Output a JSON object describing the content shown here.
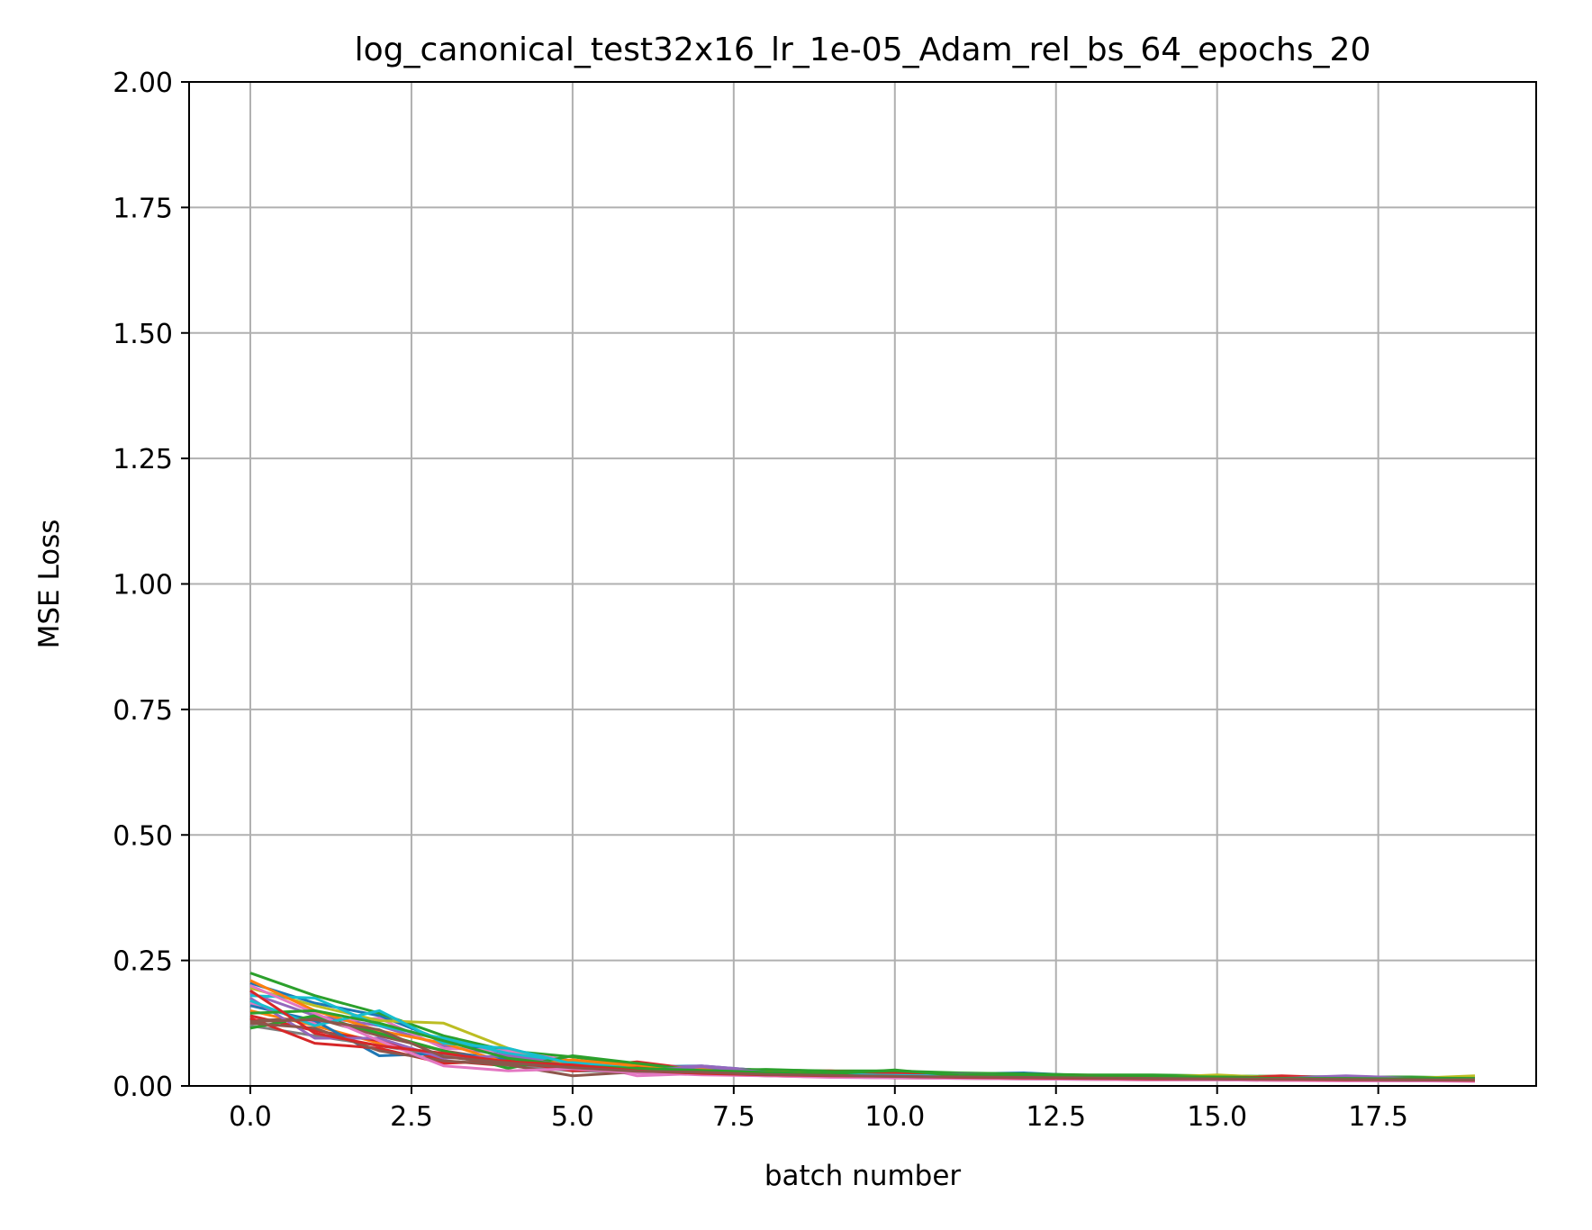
{
  "chart_data": {
    "type": "line",
    "title": "log_canonical_test32x16_lr_1e-05_Adam_rel_bs_64_epochs_20",
    "xlabel": "batch number",
    "ylabel": "MSE Loss",
    "xlim": [
      -0.95,
      19.95
    ],
    "ylim": [
      0,
      2
    ],
    "xticks": [
      0,
      2.5,
      5,
      7.5,
      10,
      12.5,
      15,
      17.5
    ],
    "xtick_labels": [
      "0.0",
      "2.5",
      "5.0",
      "7.5",
      "10.0",
      "12.5",
      "15.0",
      "17.5"
    ],
    "yticks": [
      0,
      0.25,
      0.5,
      0.75,
      1,
      1.25,
      1.5,
      1.75,
      2
    ],
    "ytick_labels": [
      "0.00",
      "0.25",
      "0.50",
      "0.75",
      "1.00",
      "1.25",
      "1.50",
      "1.75",
      "2.00"
    ],
    "grid": true,
    "x": [
      0,
      1,
      2,
      3,
      4,
      5,
      6,
      7,
      8,
      9,
      10,
      11,
      12,
      13,
      14,
      15,
      16,
      17,
      18,
      19
    ],
    "series": [
      {
        "color": "#1f77b4",
        "values": [
          0.205,
          0.165,
          0.14,
          0.09,
          0.065,
          0.05,
          0.038,
          0.04,
          0.03,
          0.028,
          0.025,
          0.024,
          0.026,
          0.02,
          0.02,
          0.018,
          0.017,
          0.018,
          0.016,
          0.014
        ]
      },
      {
        "color": "#ff7f0e",
        "values": [
          0.15,
          0.12,
          0.085,
          0.06,
          0.045,
          0.04,
          0.03,
          0.028,
          0.024,
          0.022,
          0.02,
          0.018,
          0.017,
          0.016,
          0.015,
          0.014,
          0.014,
          0.013,
          0.012,
          0.012
        ]
      },
      {
        "color": "#2ca02c",
        "values": [
          0.225,
          0.18,
          0.145,
          0.1,
          0.07,
          0.058,
          0.042,
          0.036,
          0.032,
          0.03,
          0.03,
          0.026,
          0.024,
          0.022,
          0.022,
          0.02,
          0.019,
          0.018,
          0.018,
          0.016
        ]
      },
      {
        "color": "#d62728",
        "values": [
          0.14,
          0.11,
          0.09,
          0.05,
          0.04,
          0.036,
          0.048,
          0.032,
          0.028,
          0.03,
          0.024,
          0.022,
          0.02,
          0.02,
          0.018,
          0.016,
          0.02,
          0.016,
          0.015,
          0.014
        ]
      },
      {
        "color": "#9467bd",
        "values": [
          0.185,
          0.14,
          0.12,
          0.08,
          0.06,
          0.045,
          0.034,
          0.04,
          0.03,
          0.026,
          0.022,
          0.024,
          0.02,
          0.018,
          0.018,
          0.017,
          0.016,
          0.02,
          0.016,
          0.015
        ]
      },
      {
        "color": "#8c564b",
        "values": [
          0.13,
          0.135,
          0.1,
          0.07,
          0.05,
          0.035,
          0.03,
          0.026,
          0.022,
          0.02,
          0.018,
          0.017,
          0.016,
          0.015,
          0.014,
          0.013,
          0.012,
          0.012,
          0.011,
          0.011
        ]
      },
      {
        "color": "#e377c2",
        "values": [
          0.165,
          0.125,
          0.135,
          0.075,
          0.07,
          0.05,
          0.02,
          0.025,
          0.022,
          0.019,
          0.017,
          0.016,
          0.015,
          0.014,
          0.014,
          0.013,
          0.012,
          0.012,
          0.011,
          0.01
        ]
      },
      {
        "color": "#7f7f7f",
        "values": [
          0.12,
          0.1,
          0.08,
          0.06,
          0.04,
          0.03,
          0.028,
          0.024,
          0.021,
          0.019,
          0.018,
          0.016,
          0.015,
          0.014,
          0.013,
          0.013,
          0.012,
          0.011,
          0.011,
          0.01
        ]
      },
      {
        "color": "#bcbd22",
        "values": [
          0.195,
          0.16,
          0.13,
          0.125,
          0.075,
          0.042,
          0.036,
          0.03,
          0.026,
          0.024,
          0.022,
          0.02,
          0.019,
          0.018,
          0.017,
          0.022,
          0.016,
          0.015,
          0.015,
          0.02
        ]
      },
      {
        "color": "#17becf",
        "values": [
          0.18,
          0.175,
          0.12,
          0.095,
          0.065,
          0.048,
          0.034,
          0.03,
          0.027,
          0.024,
          0.022,
          0.02,
          0.019,
          0.018,
          0.017,
          0.016,
          0.015,
          0.015,
          0.014,
          0.013
        ]
      },
      {
        "color": "#1f77b4",
        "values": [
          0.16,
          0.13,
          0.06,
          0.065,
          0.055,
          0.04,
          0.032,
          0.028,
          0.025,
          0.022,
          0.02,
          0.019,
          0.018,
          0.017,
          0.016,
          0.015,
          0.015,
          0.014,
          0.013,
          0.013
        ]
      },
      {
        "color": "#ff7f0e",
        "values": [
          0.21,
          0.15,
          0.11,
          0.085,
          0.045,
          0.052,
          0.04,
          0.034,
          0.028,
          0.025,
          0.023,
          0.021,
          0.02,
          0.018,
          0.017,
          0.016,
          0.016,
          0.015,
          0.014,
          0.014
        ]
      },
      {
        "color": "#2ca02c",
        "values": [
          0.115,
          0.14,
          0.105,
          0.07,
          0.035,
          0.06,
          0.045,
          0.03,
          0.033,
          0.029,
          0.026,
          0.023,
          0.021,
          0.02,
          0.019,
          0.018,
          0.017,
          0.016,
          0.016,
          0.015
        ]
      },
      {
        "color": "#d62728",
        "values": [
          0.135,
          0.085,
          0.075,
          0.045,
          0.05,
          0.03,
          0.036,
          0.026,
          0.024,
          0.021,
          0.025,
          0.018,
          0.017,
          0.016,
          0.015,
          0.015,
          0.018,
          0.014,
          0.013,
          0.013
        ]
      },
      {
        "color": "#9467bd",
        "values": [
          0.175,
          0.095,
          0.095,
          0.055,
          0.06,
          0.038,
          0.03,
          0.038,
          0.027,
          0.023,
          0.021,
          0.02,
          0.018,
          0.017,
          0.016,
          0.015,
          0.015,
          0.019,
          0.014,
          0.013
        ]
      },
      {
        "color": "#8c564b",
        "values": [
          0.125,
          0.115,
          0.07,
          0.05,
          0.042,
          0.02,
          0.028,
          0.024,
          0.02,
          0.018,
          0.016,
          0.015,
          0.014,
          0.013,
          0.012,
          0.012,
          0.011,
          0.011,
          0.01,
          0.01
        ]
      },
      {
        "color": "#e377c2",
        "values": [
          0.2,
          0.145,
          0.09,
          0.04,
          0.03,
          0.034,
          0.026,
          0.022,
          0.02,
          0.017,
          0.016,
          0.015,
          0.014,
          0.013,
          0.012,
          0.012,
          0.011,
          0.01,
          0.01,
          0.009
        ]
      },
      {
        "color": "#17becf",
        "values": [
          0.17,
          0.12,
          0.15,
          0.085,
          0.075,
          0.044,
          0.033,
          0.029,
          0.026,
          0.023,
          0.021,
          0.019,
          0.018,
          0.017,
          0.016,
          0.015,
          0.014,
          0.014,
          0.013,
          0.012
        ]
      },
      {
        "color": "#2ca02c",
        "values": [
          0.145,
          0.15,
          0.125,
          0.09,
          0.055,
          0.04,
          0.035,
          0.031,
          0.027,
          0.024,
          0.032,
          0.02,
          0.019,
          0.018,
          0.017,
          0.016,
          0.015,
          0.015,
          0.014,
          0.013
        ]
      },
      {
        "color": "#d62728",
        "values": [
          0.19,
          0.105,
          0.08,
          0.065,
          0.048,
          0.042,
          0.03,
          0.025,
          0.022,
          0.02,
          0.019,
          0.017,
          0.016,
          0.015,
          0.014,
          0.014,
          0.013,
          0.012,
          0.012,
          0.011
        ]
      },
      {
        "color": "#8c564b",
        "values": [
          0.128,
          0.132,
          0.112,
          0.058,
          0.046,
          0.036,
          0.029,
          0.027,
          0.023,
          0.021,
          0.019,
          0.018,
          0.017,
          0.016,
          0.015,
          0.014,
          0.014,
          0.013,
          0.012,
          0.012
        ]
      }
    ]
  }
}
